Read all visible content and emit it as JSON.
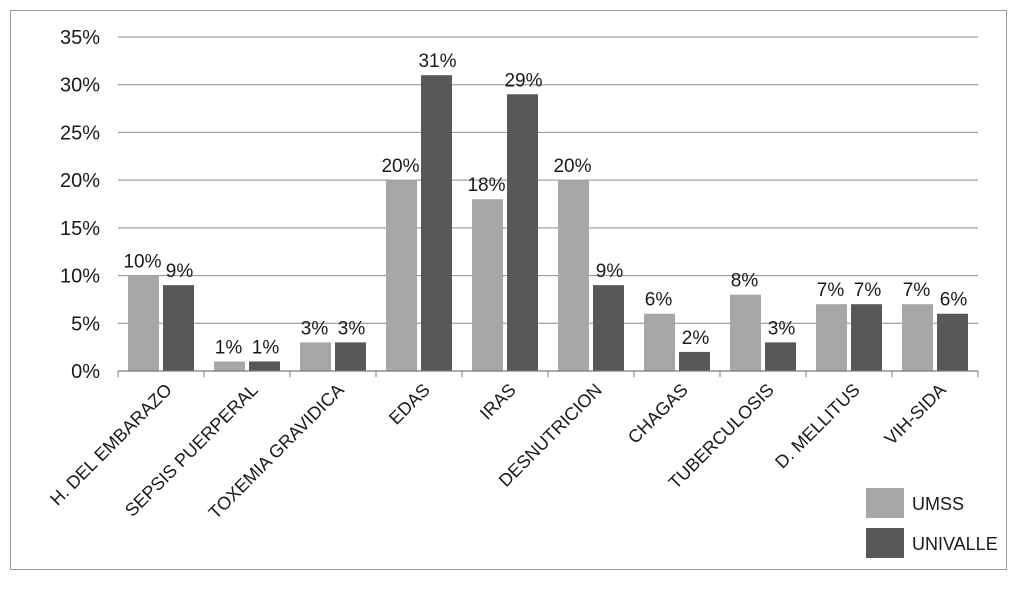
{
  "chart_data": {
    "type": "bar",
    "categories": [
      "H. DEL EMBARAZO",
      "SEPSIS PUERPERAL",
      "TOXEMIA GRAVIDICA",
      "EDAS",
      "IRAS",
      "DESNUTRICION",
      "CHAGAS",
      "TUBERCULOSIS",
      "D. MELLITUS",
      "VIH-SIDA"
    ],
    "series": [
      {
        "name": "UMSS",
        "color": "#a7a7aa",
        "values": [
          10,
          1,
          3,
          20,
          18,
          20,
          6,
          8,
          7,
          7
        ],
        "labels": [
          "10%",
          "1%",
          "3%",
          "20%",
          "18%",
          "20%",
          "6%",
          "8%",
          "7%",
          "7%"
        ]
      },
      {
        "name": "UNIVALLE",
        "color": "#58585a",
        "values": [
          9,
          1,
          3,
          31,
          29,
          9,
          2,
          3,
          7,
          6
        ],
        "labels": [
          "9%",
          "1%",
          "3%",
          "31%",
          "29%",
          "9%",
          "2%",
          "3%",
          "7%",
          "6%"
        ]
      }
    ],
    "yticks": [
      "0%",
      "5%",
      "10%",
      "15%",
      "20%",
      "25%",
      "30%",
      "35%"
    ],
    "ylim": [
      0,
      35
    ],
    "grid": true,
    "legend_position": "bottom-right",
    "title": "",
    "xlabel": "",
    "ylabel": ""
  }
}
